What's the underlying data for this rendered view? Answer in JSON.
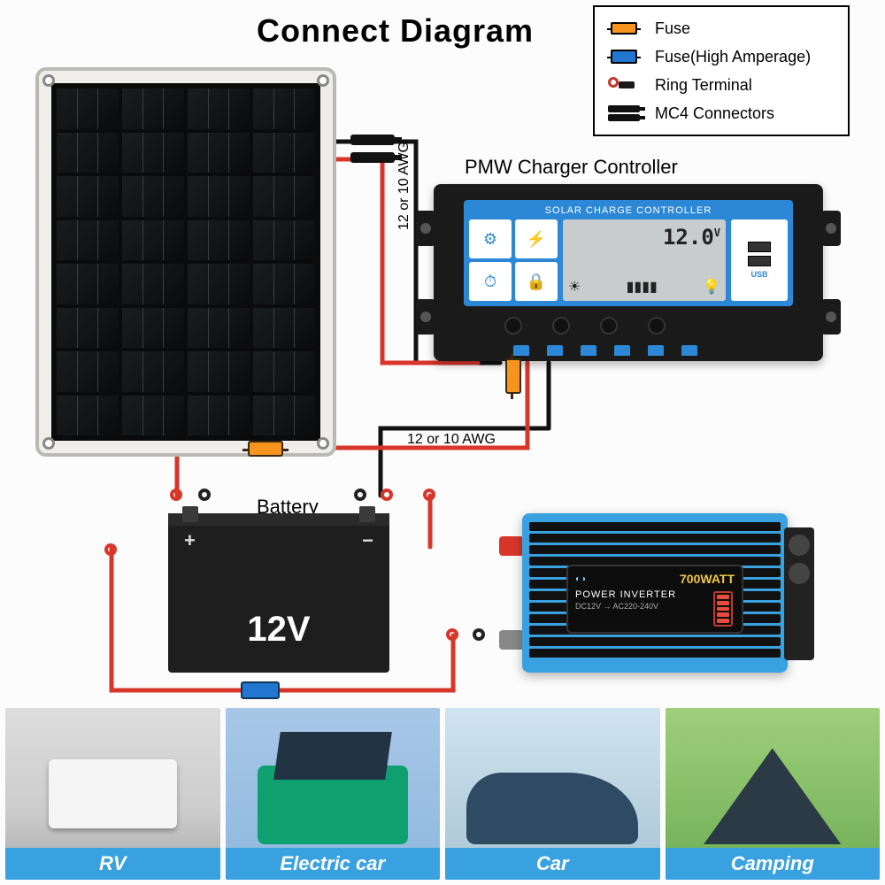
{
  "title": "Connect Diagram",
  "legend": {
    "fuse": "Fuse",
    "fuse_high": "Fuse(High Amperage)",
    "ring": "Ring Terminal",
    "mc4": "MC4 Connectors"
  },
  "labels": {
    "controller": "PMW Charger Controller",
    "battery": "Battery",
    "awg": "12 or 10 AWG"
  },
  "controller": {
    "header": "SOLAR CHARGE CONTROLLER",
    "lcd_value": "12.0",
    "lcd_unit": "V",
    "usb": "USB",
    "icons": [
      "⚙",
      "⚡",
      "⏱",
      "🔒"
    ]
  },
  "battery": {
    "voltage": "12V",
    "plus": "+",
    "minus": "−"
  },
  "inverter": {
    "watt": "700WATT",
    "name": "POWER INVERTER",
    "spec": "DC12V → AC220-240V",
    "bars": 5
  },
  "gallery": [
    {
      "caption": "RV",
      "scene": "scene-rv"
    },
    {
      "caption": "Electric car",
      "scene": "scene-ec"
    },
    {
      "caption": "Car",
      "scene": "scene-car"
    },
    {
      "caption": "Camping",
      "scene": "scene-camp"
    }
  ],
  "colors": {
    "wire_red": "#d9362a",
    "wire_black": "#111111",
    "accent_blue": "#3aa1e0",
    "fuse_orange": "#f7941d",
    "fuse_blue": "#2176d1"
  },
  "wiring": {
    "stroke_width": 5,
    "paths_black": [
      "M380 160 L470 160 L470 410 L565 410",
      "M430 560 L430 484 L620 484",
      "M620 484 L620 410"
    ],
    "paths_red": [
      "M380 180 L432 180 L432 410 L540 410",
      "M596 410 L596 506 L200 506",
      "M200 506 L200 560",
      "M126 620 L126 780 L512 780 L512 718",
      "M486 618 L486 560"
    ]
  }
}
